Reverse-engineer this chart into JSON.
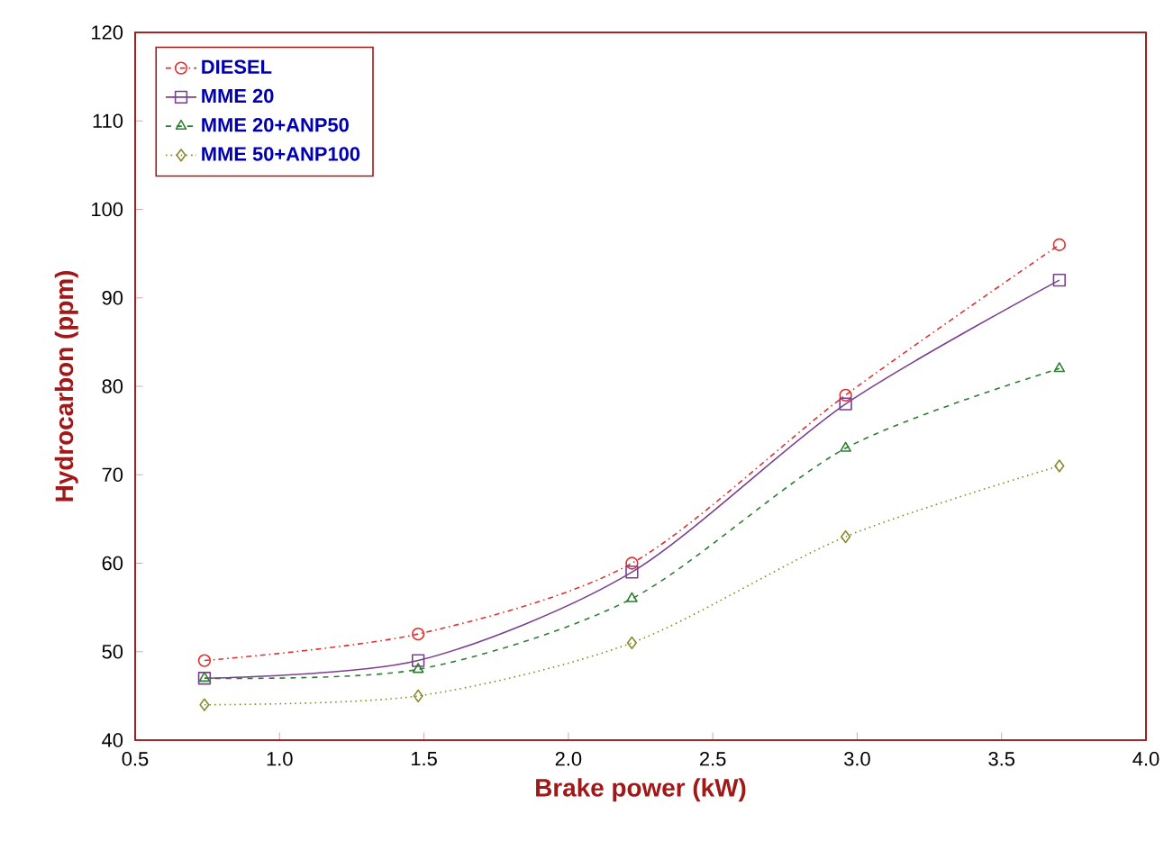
{
  "chart_data": {
    "type": "line",
    "xlabel": "Brake power (kW)",
    "ylabel": "Hydrocarbon (ppm)",
    "x": [
      0.74,
      1.48,
      2.22,
      2.96,
      3.7
    ],
    "series": [
      {
        "name": "DIESEL",
        "color": "#e03030",
        "marker": "circle",
        "line_style": "dashdot",
        "values": [
          49,
          52,
          60,
          79,
          96
        ]
      },
      {
        "name": "MME 20",
        "color": "#7b3f8f",
        "marker": "square",
        "line_style": "solid",
        "values": [
          47,
          49,
          59,
          78,
          92
        ]
      },
      {
        "name": "MME 20+ANP50",
        "color": "#2e7d32",
        "marker": "triangle",
        "line_style": "dashed",
        "values": [
          47,
          48,
          56,
          73,
          82
        ]
      },
      {
        "name": "MME 50+ANP100",
        "color": "#8a8a2a",
        "marker": "diamond",
        "line_style": "dotted",
        "values": [
          44,
          45,
          51,
          63,
          71
        ]
      }
    ],
    "xlim": [
      0.5,
      4.0
    ],
    "xticks": [
      {
        "value": 0.5,
        "label": "0.5"
      },
      {
        "value": 1.0,
        "label": "1.0"
      },
      {
        "value": 1.5,
        "label": "1.5"
      },
      {
        "value": 2.0,
        "label": "2.0"
      },
      {
        "value": 2.5,
        "label": "2.5"
      },
      {
        "value": 3.0,
        "label": "3.0"
      },
      {
        "value": 3.5,
        "label": "3.5"
      },
      {
        "value": 4.0,
        "label": "4.0"
      }
    ],
    "ylim": [
      40,
      120
    ],
    "yticks": [
      40,
      50,
      60,
      70,
      80,
      90,
      100,
      110,
      120
    ],
    "grid": false,
    "legend": "top left"
  }
}
